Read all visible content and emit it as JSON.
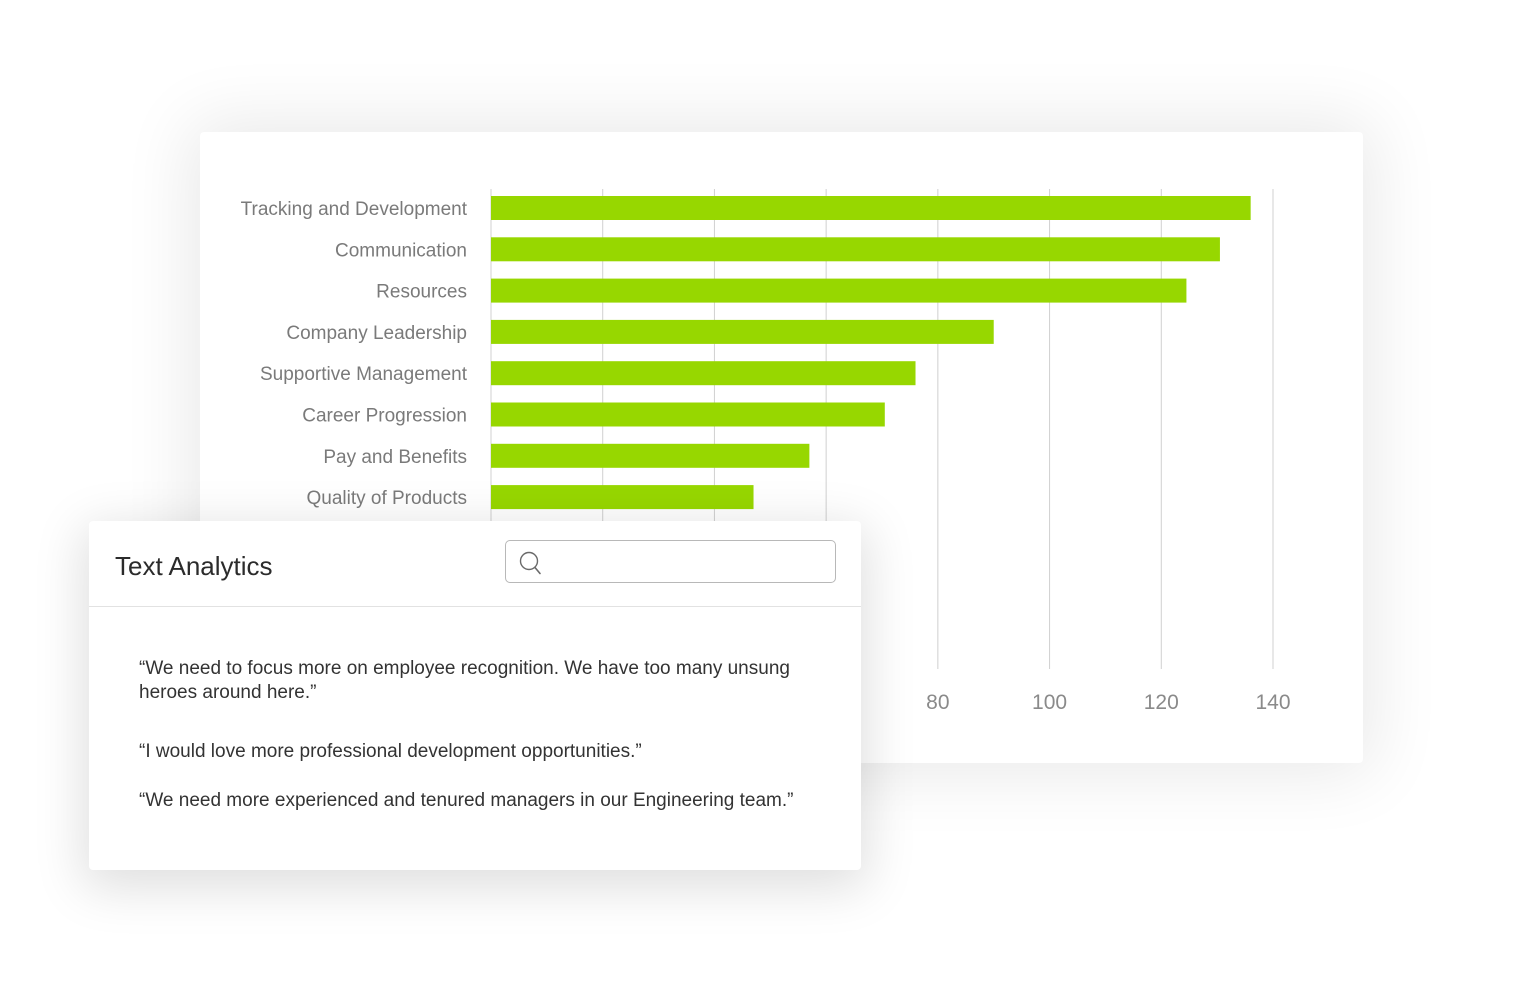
{
  "text_analytics": {
    "title": "Text Analytics",
    "search": {
      "value": "",
      "placeholder": ""
    },
    "quotes": [
      "“We need to focus more on employee recognition. We have too many unsung heroes around here.”",
      "“I would love more professional development opportunities.”",
      "“We need more experienced and tenured managers in our Engineering team.”"
    ]
  },
  "colors": {
    "bar": "#97d700",
    "grid": "#d0d0d0",
    "label": "#7a7a7a"
  },
  "chart_data": {
    "type": "bar",
    "orientation": "horizontal",
    "categories": [
      "Tracking and Development",
      "Communication",
      "Resources",
      "Company Leadership",
      "Supportive Management",
      "Career Progression",
      "Pay and Benefits",
      "Quality of Products"
    ],
    "values": [
      136,
      130.5,
      124.5,
      90,
      76,
      70.5,
      57,
      47
    ],
    "xlim": [
      0,
      140
    ],
    "x_ticks": [
      0,
      20,
      40,
      60,
      80,
      100,
      120,
      140
    ],
    "visible_tick_labels": [
      "80",
      "100",
      "120",
      "140"
    ],
    "grid": true,
    "title": "",
    "xlabel": "",
    "ylabel": ""
  }
}
